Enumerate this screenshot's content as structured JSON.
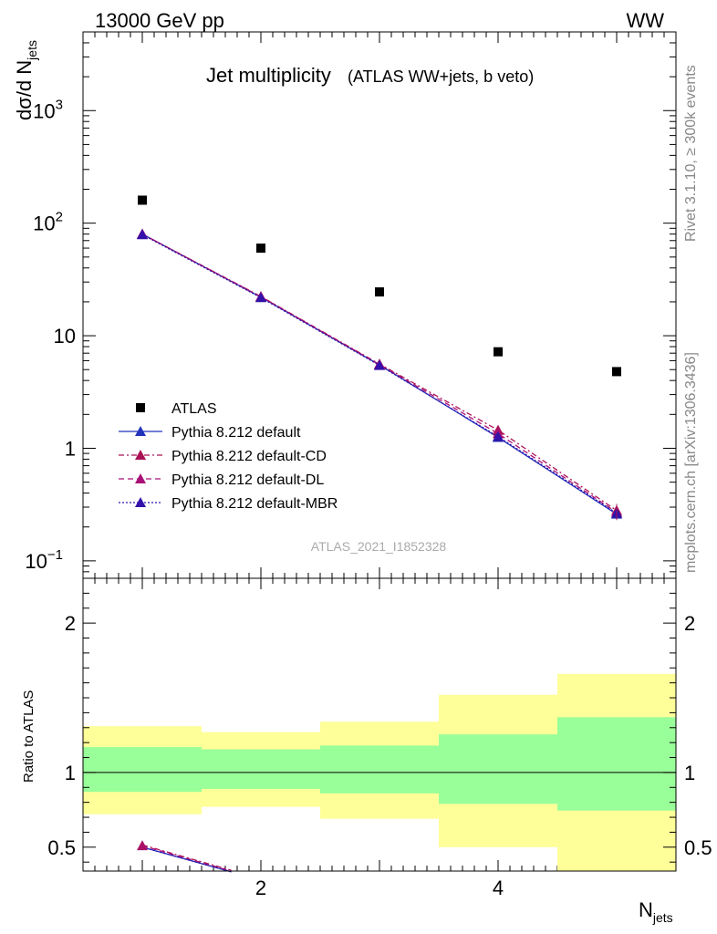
{
  "header": {
    "left": "13000 GeV pp",
    "right": "WW"
  },
  "side_labels": {
    "rivet": "Rivet 3.1.10, ≥ 300k events",
    "mcplots": "mcplots.cern.ch [arXiv:1306.3436]"
  },
  "chart_data": {
    "type": "line",
    "title": "Jet multiplicity",
    "subtitle": "(ATLAS WW+jets, b veto)",
    "analysis_id": "ATLAS_2021_I1852328",
    "ylabel": "dσ/d N",
    "ylabel_sub": "jets",
    "xlabel": "N",
    "xlabel_sub": "jets",
    "xlim": [
      0.5,
      5.5
    ],
    "ylim": [
      0.07,
      5000
    ],
    "y_scale": "log",
    "x_ticks": [
      {
        "value": 2,
        "label": "2"
      },
      {
        "value": 4,
        "label": "4"
      }
    ],
    "y_ticks": [
      {
        "value": 0.1,
        "base": "10",
        "exp": "−1"
      },
      {
        "value": 1,
        "base": "1",
        "exp": ""
      },
      {
        "value": 10,
        "base": "10",
        "exp": ""
      },
      {
        "value": 100,
        "base": "10",
        "exp": "2"
      },
      {
        "value": 1000,
        "base": "10",
        "exp": "3"
      }
    ],
    "x": [
      1,
      2,
      3,
      4,
      5
    ],
    "series": [
      {
        "name": "ATLAS",
        "values": [
          160,
          60,
          24.5,
          7.2,
          4.8
        ],
        "color": "#000000",
        "marker": "square",
        "style": "none"
      },
      {
        "name": "Pythia 8.212 default",
        "values": [
          80,
          22,
          5.5,
          1.25,
          0.26
        ],
        "color": "#2233bb",
        "marker": "triangle",
        "style": "solid"
      },
      {
        "name": "Pythia 8.212 default-CD",
        "values": [
          80,
          22.3,
          5.6,
          1.45,
          0.28
        ],
        "color": "#aa1155",
        "marker": "triangle",
        "style": "dashdot"
      },
      {
        "name": "Pythia 8.212 default-DL",
        "values": [
          80,
          22.2,
          5.55,
          1.35,
          0.27
        ],
        "color": "#aa1177",
        "marker": "triangle",
        "style": "dashed"
      },
      {
        "name": "Pythia 8.212 default-MBR",
        "values": [
          79,
          21.8,
          5.45,
          1.27,
          0.265
        ],
        "color": "#3311aa",
        "marker": "triangle",
        "style": "dotted"
      }
    ],
    "legend_placement": "lower-left",
    "ratio": {
      "ylabel": "Ratio to ATLAS",
      "ylim": [
        0.34,
        2.3
      ],
      "y_ticks": [
        {
          "value": 0.5,
          "label": "0.5"
        },
        {
          "value": 1,
          "label": "1"
        },
        {
          "value": 2,
          "label": "2"
        }
      ],
      "bins": [
        {
          "lo": 0.5,
          "hi": 1.5,
          "green": [
            0.87,
            1.17
          ],
          "yellow": [
            0.72,
            1.31
          ]
        },
        {
          "lo": 1.5,
          "hi": 2.5,
          "green": [
            0.89,
            1.155
          ],
          "yellow": [
            0.77,
            1.27
          ]
        },
        {
          "lo": 2.5,
          "hi": 3.5,
          "green": [
            0.86,
            1.18
          ],
          "yellow": [
            0.69,
            1.34
          ]
        },
        {
          "lo": 3.5,
          "hi": 4.5,
          "green": [
            0.79,
            1.255
          ],
          "yellow": [
            0.5,
            1.52
          ]
        },
        {
          "lo": 4.5,
          "hi": 5.5,
          "green": [
            0.745,
            1.37
          ],
          "yellow": [
            0.34,
            1.66
          ]
        }
      ],
      "mc_points": [
        {
          "x": 1,
          "default": 0.5,
          "cd": 0.515,
          "dl": 0.51,
          "mbr": 0.5
        }
      ],
      "mc_line_end": {
        "x": 1.75,
        "default": 0.335,
        "cd": 0.345,
        "dl": 0.34,
        "mbr": 0.335
      }
    }
  }
}
